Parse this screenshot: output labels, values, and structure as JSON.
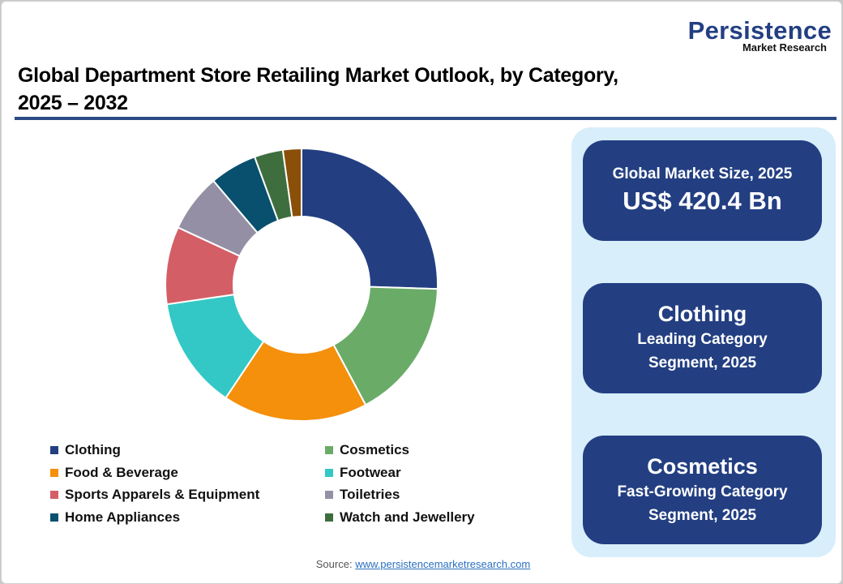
{
  "header": {
    "logo_main": "Persistence",
    "logo_sub": "Market Research",
    "title_line1": "Global Department Store Retailing Market Outlook, by Category,",
    "title_line2": "2025 – 2032"
  },
  "legend": [
    {
      "label": "Clothing",
      "color": "#233f82"
    },
    {
      "label": "Cosmetics",
      "color": "#6aab68"
    },
    {
      "label": "Food & Beverage",
      "color": "#f4900c"
    },
    {
      "label": "Footwear",
      "color": "#33c8c5"
    },
    {
      "label": "Sports Apparels & Equipment",
      "color": "#d45e66"
    },
    {
      "label": "Toiletries",
      "color": "#958fa6"
    },
    {
      "label": "Home Appliances",
      "color": "#08506e"
    },
    {
      "label": "Watch and Jewellery",
      "color": "#3e6e3d"
    }
  ],
  "cards": {
    "market_size_label": "Global Market Size, 2025",
    "market_size_value": "US$ 420.4 Bn",
    "leading_name": "Clothing",
    "leading_line1": "Leading Category",
    "leading_line2": "Segment, 2025",
    "fast_name": "Cosmetics",
    "fast_line1": "Fast-Growing Category",
    "fast_line2": "Segment, 2025"
  },
  "source": {
    "label": "Source: ",
    "link": "www.persistencemarketresearch.com"
  },
  "chart_data": {
    "type": "pie",
    "variant": "donut",
    "title": "Global Department Store Retailing Market Outlook, by Category, 2025 – 2032",
    "categories": [
      "Clothing",
      "Cosmetics",
      "Food & Beverage",
      "Footwear",
      "Sports Apparels & Equipment",
      "Toiletries",
      "Home Appliances",
      "Watch and Jewellery",
      "Unlabeled (brown)"
    ],
    "values": [
      25.5,
      16.7,
      17.2,
      13.3,
      9.2,
      6.9,
      5.6,
      3.4,
      2.2
    ],
    "colors": [
      "#233f82",
      "#6aab68",
      "#f4900c",
      "#33c8c5",
      "#d45e66",
      "#958fa6",
      "#08506e",
      "#3e6e3d",
      "#8a4f08"
    ],
    "unit": "% share (estimated from slice angles)",
    "start_angle": "12 o'clock, clockwise",
    "legend_position": "bottom"
  }
}
